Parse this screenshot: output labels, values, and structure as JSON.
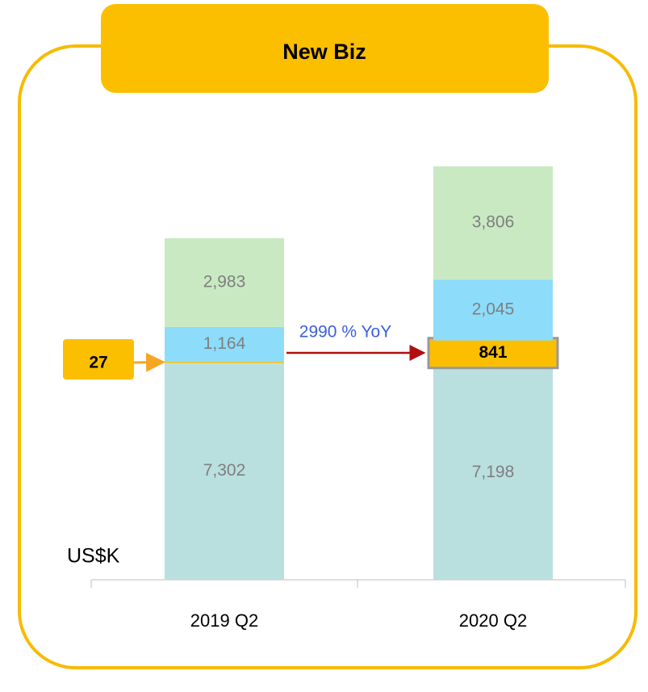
{
  "chart_data": {
    "type": "stacked_bar",
    "title": "New Biz",
    "categories": [
      "2019 Q2",
      "2020 Q2"
    ],
    "series": [
      {
        "color": "#badfdf",
        "values": [
          7302,
          7198
        ],
        "value_labels": [
          "7,302",
          "7,198"
        ]
      },
      {
        "color": "#fbbf00",
        "values": [
          27,
          841
        ]
      },
      {
        "color": "#8ddcfa",
        "values": [
          1164,
          2045
        ],
        "value_labels": [
          "1,164",
          "2,045"
        ]
      },
      {
        "color": "#c9e9c3",
        "values": [
          2983,
          3806
        ],
        "value_labels": [
          "2,983",
          "3,806"
        ]
      }
    ],
    "ylim": [
      0,
      14000
    ],
    "y_label": "US$K",
    "annotation": "2990 % YoY"
  }
}
